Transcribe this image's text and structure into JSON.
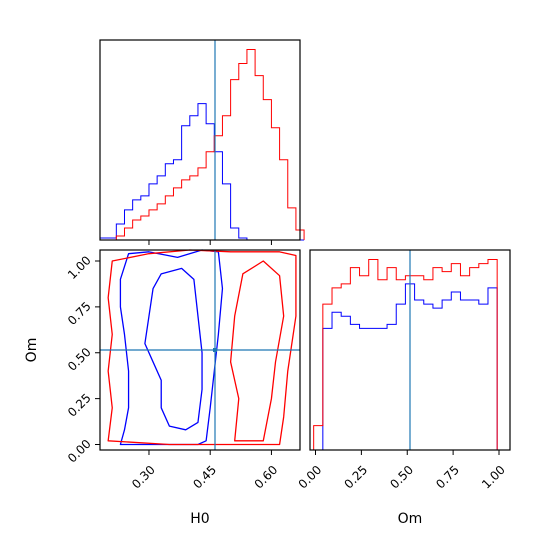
{
  "chart_data": {
    "type": "corner",
    "parameters": [
      "H0",
      "Om"
    ],
    "series_colors": [
      "#0000ff",
      "#ff0000"
    ],
    "truth_line_color": "#1f77b4",
    "truth": {
      "H0": 0.45,
      "Om": 0.51
    },
    "panels": [
      {
        "id": "hist-H0",
        "type": "histogram-step",
        "xlim": [
          0.18,
          0.67
        ],
        "x_edges": [
          0.18,
          0.2,
          0.22,
          0.24,
          0.26,
          0.28,
          0.3,
          0.32,
          0.34,
          0.36,
          0.38,
          0.4,
          0.42,
          0.44,
          0.46,
          0.48,
          0.5,
          0.52,
          0.54,
          0.56,
          0.58,
          0.6,
          0.62,
          0.64,
          0.66,
          0.68
        ],
        "series": [
          {
            "color": "#0000ff",
            "counts": [
              1,
              1,
              8,
              15,
              20,
              22,
              28,
              32,
              38,
              40,
              57,
              62,
              68,
              58,
              44,
              28,
              6,
              1,
              0,
              0,
              0,
              0,
              0,
              0,
              0
            ]
          },
          {
            "color": "#ff0000",
            "counts": [
              0,
              0,
              2,
              6,
              10,
              12,
              15,
              18,
              22,
              26,
              30,
              32,
              36,
              44,
              52,
              62,
              80,
              88,
              95,
              82,
              70,
              56,
              40,
              16,
              5
            ]
          }
        ]
      },
      {
        "id": "hist-Om",
        "type": "histogram-step",
        "xlim": [
          -0.03,
          1.06
        ],
        "xlabel": "Om",
        "xticks": [
          "0.00",
          "0.25",
          "0.50",
          "0.75",
          "1.00"
        ],
        "xtick_values": [
          0.0,
          0.25,
          0.5,
          0.75,
          1.0
        ],
        "x_edges": [
          -0.01,
          0.04,
          0.09,
          0.14,
          0.19,
          0.24,
          0.29,
          0.34,
          0.39,
          0.44,
          0.49,
          0.54,
          0.59,
          0.64,
          0.69,
          0.74,
          0.79,
          0.84,
          0.89,
          0.94,
          0.99,
          1.04
        ],
        "series": [
          {
            "color": "#0000ff",
            "counts": [
              0,
              60,
              68,
              66,
              62,
              60,
              60,
              60,
              62,
              72,
              82,
              74,
              72,
              70,
              74,
              78,
              74,
              74,
              72,
              80,
              0
            ]
          },
          {
            "color": "#ff0000",
            "counts": [
              12,
              72,
              80,
              82,
              90,
              86,
              94,
              84,
              90,
              84,
              86,
              86,
              84,
              90,
              88,
              92,
              86,
              90,
              92,
              94,
              0
            ]
          }
        ]
      },
      {
        "id": "contour-H0-Om",
        "type": "contour",
        "xlim": [
          0.18,
          0.67
        ],
        "ylim": [
          -0.03,
          1.06
        ],
        "xlabel": "H0",
        "ylabel": "Om",
        "xticks": [
          "0.30",
          "0.45",
          "0.60"
        ],
        "xtick_values": [
          0.3,
          0.45,
          0.6
        ],
        "yticks": [
          "0.00",
          "0.25",
          "0.50",
          "0.75",
          "1.00"
        ],
        "ytick_values": [
          0.0,
          0.25,
          0.5,
          0.75,
          1.0
        ],
        "contours": [
          {
            "color": "#0000ff",
            "level": "outer",
            "points": [
              [
                0.23,
                0.0
              ],
              [
                0.24,
                0.08
              ],
              [
                0.25,
                0.2
              ],
              [
                0.25,
                0.4
              ],
              [
                0.24,
                0.6
              ],
              [
                0.23,
                0.75
              ],
              [
                0.23,
                0.9
              ],
              [
                0.25,
                1.04
              ],
              [
                0.3,
                1.05
              ],
              [
                0.37,
                1.02
              ],
              [
                0.43,
                1.06
              ],
              [
                0.47,
                1.05
              ],
              [
                0.48,
                0.85
              ],
              [
                0.47,
                0.6
              ],
              [
                0.46,
                0.4
              ],
              [
                0.45,
                0.2
              ],
              [
                0.44,
                0.02
              ],
              [
                0.42,
                0.0
              ],
              [
                0.36,
                0.0
              ],
              [
                0.3,
                0.0
              ]
            ]
          },
          {
            "color": "#0000ff",
            "level": "inner",
            "points": [
              [
                0.29,
                0.55
              ],
              [
                0.3,
                0.7
              ],
              [
                0.31,
                0.85
              ],
              [
                0.33,
                0.93
              ],
              [
                0.38,
                0.96
              ],
              [
                0.41,
                0.9
              ],
              [
                0.42,
                0.7
              ],
              [
                0.43,
                0.5
              ],
              [
                0.43,
                0.3
              ],
              [
                0.42,
                0.12
              ],
              [
                0.39,
                0.08
              ],
              [
                0.35,
                0.1
              ],
              [
                0.33,
                0.2
              ],
              [
                0.33,
                0.35
              ],
              [
                0.31,
                0.45
              ]
            ]
          },
          {
            "color": "#ff0000",
            "level": "outer",
            "points": [
              [
                0.2,
                0.02
              ],
              [
                0.21,
                0.2
              ],
              [
                0.2,
                0.4
              ],
              [
                0.21,
                0.6
              ],
              [
                0.2,
                0.8
              ],
              [
                0.21,
                1.0
              ],
              [
                0.3,
                1.04
              ],
              [
                0.4,
                1.06
              ],
              [
                0.5,
                1.05
              ],
              [
                0.62,
                1.05
              ],
              [
                0.66,
                1.03
              ],
              [
                0.66,
                0.7
              ],
              [
                0.64,
                0.4
              ],
              [
                0.63,
                0.15
              ],
              [
                0.62,
                0.0
              ],
              [
                0.5,
                0.0
              ],
              [
                0.35,
                0.0
              ]
            ]
          },
          {
            "color": "#ff0000",
            "level": "inner",
            "points": [
              [
                0.51,
                0.02
              ],
              [
                0.52,
                0.25
              ],
              [
                0.5,
                0.45
              ],
              [
                0.51,
                0.7
              ],
              [
                0.53,
                0.93
              ],
              [
                0.58,
                1.0
              ],
              [
                0.62,
                0.92
              ],
              [
                0.63,
                0.7
              ],
              [
                0.61,
                0.45
              ],
              [
                0.6,
                0.25
              ],
              [
                0.58,
                0.02
              ]
            ]
          }
        ]
      }
    ]
  }
}
